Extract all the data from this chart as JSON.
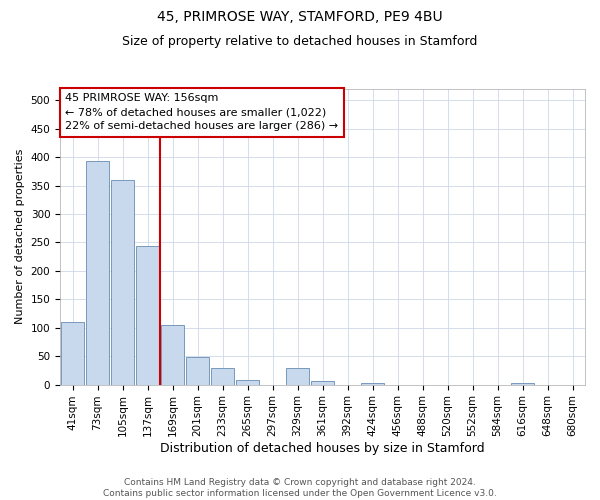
{
  "title1": "45, PRIMROSE WAY, STAMFORD, PE9 4BU",
  "title2": "Size of property relative to detached houses in Stamford",
  "xlabel": "Distribution of detached houses by size in Stamford",
  "ylabel": "Number of detached properties",
  "categories": [
    "41sqm",
    "73sqm",
    "105sqm",
    "137sqm",
    "169sqm",
    "201sqm",
    "233sqm",
    "265sqm",
    "297sqm",
    "329sqm",
    "361sqm",
    "392sqm",
    "424sqm",
    "456sqm",
    "488sqm",
    "520sqm",
    "552sqm",
    "584sqm",
    "616sqm",
    "648sqm",
    "680sqm"
  ],
  "values": [
    110,
    393,
    360,
    244,
    104,
    49,
    29,
    8,
    0,
    29,
    7,
    0,
    2,
    0,
    0,
    0,
    0,
    0,
    2,
    0,
    0
  ],
  "bar_color": "#c8d8ed",
  "bar_edge_color": "#7799bb",
  "vline_color": "#cc0000",
  "vline_pos": 3.5,
  "annotation_line1": "45 PRIMROSE WAY: 156sqm",
  "annotation_line2": "← 78% of detached houses are smaller (1,022)",
  "annotation_line3": "22% of semi-detached houses are larger (286) →",
  "annotation_box_color": "#ffffff",
  "annotation_box_edge": "#cc0000",
  "footer1": "Contains HM Land Registry data © Crown copyright and database right 2024.",
  "footer2": "Contains public sector information licensed under the Open Government Licence v3.0.",
  "ylim": [
    0,
    520
  ],
  "yticks": [
    0,
    50,
    100,
    150,
    200,
    250,
    300,
    350,
    400,
    450,
    500
  ],
  "bg_color": "#ffffff",
  "grid_color": "#d0d8e8",
  "title1_fontsize": 10,
  "title2_fontsize": 9,
  "xlabel_fontsize": 9,
  "ylabel_fontsize": 8,
  "tick_fontsize": 7.5,
  "footer_fontsize": 6.5,
  "ann_fontsize": 8
}
